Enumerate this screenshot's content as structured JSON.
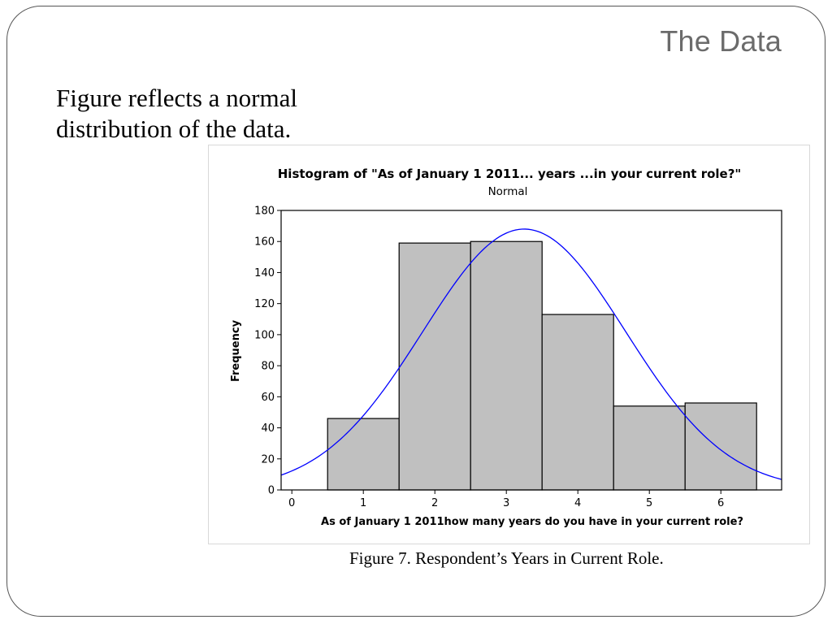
{
  "slide": {
    "title": "The Data",
    "body_text": "Figure reflects a normal distribution of the data.",
    "caption": "Figure 7. Respondent’s Years in Current Role."
  },
  "colors": {
    "bar_fill": "#c0c0c0",
    "bar_stroke": "#000000",
    "curve": "#0000ff",
    "frame": "#555555",
    "title_text": "#6b6b6b"
  },
  "chart_data": {
    "type": "bar",
    "title": "Histogram of \"As of January 1 2011... years ...in your current role?\"",
    "subtitle": "Normal",
    "xlabel": "As of January 1 2011how many years do you have in your current role?",
    "ylabel": "Frequency",
    "categories": [
      "1",
      "2",
      "3",
      "4",
      "5",
      "6"
    ],
    "values": [
      46,
      159,
      160,
      113,
      54,
      56
    ],
    "bin_centers": [
      1,
      2,
      3,
      4,
      5,
      6
    ],
    "xlim": [
      -0.15,
      6.85
    ],
    "ylim": [
      0,
      180
    ],
    "x_ticks": [
      "0",
      "1",
      "2",
      "3",
      "4",
      "5",
      "6"
    ],
    "y_ticks": [
      "0",
      "20",
      "40",
      "60",
      "80",
      "100",
      "120",
      "140",
      "160",
      "180"
    ],
    "overlay": {
      "type": "normal_curve",
      "peak": 168,
      "mean": 3.25,
      "sd": 1.42
    },
    "grid": false,
    "legend": "none"
  }
}
